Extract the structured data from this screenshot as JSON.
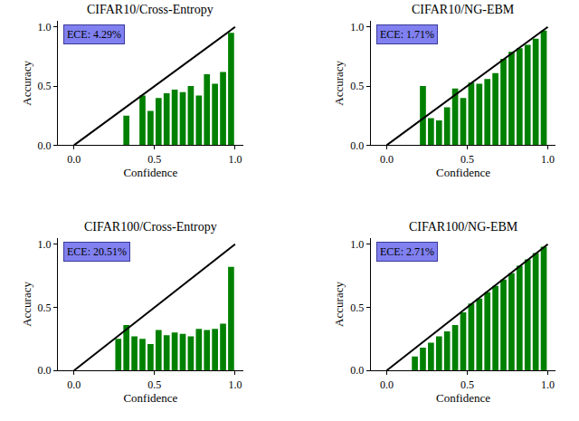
{
  "chart_data": [
    {
      "type": "bar",
      "title": "CIFAR10/Cross-Entropy",
      "xlabel": "Confidence",
      "ylabel": "Accuracy",
      "annotation": "ECE: 4.29%",
      "color": "#008000",
      "x": [
        0.325,
        0.425,
        0.475,
        0.525,
        0.575,
        0.625,
        0.675,
        0.725,
        0.775,
        0.825,
        0.875,
        0.925,
        0.975
      ],
      "values": [
        0.25,
        0.42,
        0.29,
        0.4,
        0.44,
        0.47,
        0.45,
        0.5,
        0.42,
        0.6,
        0.52,
        0.62,
        0.95
      ],
      "diagonal": {
        "x": [
          0,
          1
        ],
        "values": [
          0,
          1
        ]
      },
      "xlim": [
        -0.1,
        1.05
      ],
      "ylim": [
        0,
        1.05
      ],
      "xticks": [
        {
          "value": 0,
          "label": "0.0"
        },
        {
          "value": 0.5,
          "label": "0.5"
        },
        {
          "value": 1,
          "label": "1.0"
        }
      ],
      "yticks": [
        {
          "value": 0,
          "label": "0.0"
        },
        {
          "value": 0.5,
          "label": "0.5"
        },
        {
          "value": 1,
          "label": "1.0"
        }
      ],
      "grid": false
    },
    {
      "type": "bar",
      "title": "CIFAR10/NG-EBM",
      "xlabel": "Confidence",
      "ylabel": "Accuracy",
      "annotation": "ECE: 1.71%",
      "color": "#008000",
      "x": [
        0.225,
        0.275,
        0.325,
        0.375,
        0.425,
        0.475,
        0.525,
        0.575,
        0.625,
        0.675,
        0.725,
        0.775,
        0.825,
        0.875,
        0.925,
        0.975
      ],
      "values": [
        0.5,
        0.23,
        0.21,
        0.32,
        0.48,
        0.4,
        0.53,
        0.52,
        0.56,
        0.61,
        0.73,
        0.79,
        0.82,
        0.85,
        0.9,
        0.97
      ],
      "diagonal": {
        "x": [
          0,
          1
        ],
        "values": [
          0,
          1
        ]
      },
      "xlim": [
        -0.1,
        1.05
      ],
      "ylim": [
        0,
        1.05
      ],
      "xticks": [
        {
          "value": 0,
          "label": "0.0"
        },
        {
          "value": 0.5,
          "label": "0.5"
        },
        {
          "value": 1,
          "label": "1.0"
        }
      ],
      "yticks": [
        {
          "value": 0,
          "label": "0.0"
        },
        {
          "value": 0.5,
          "label": "0.5"
        },
        {
          "value": 1,
          "label": "1.0"
        }
      ],
      "grid": false
    },
    {
      "type": "bar",
      "title": "CIFAR100/Cross-Entropy",
      "xlabel": "Confidence",
      "ylabel": "Accuracy",
      "annotation": "ECE: 20.51%",
      "color": "#008000",
      "x": [
        0.275,
        0.325,
        0.375,
        0.425,
        0.475,
        0.525,
        0.575,
        0.625,
        0.675,
        0.725,
        0.775,
        0.825,
        0.875,
        0.925,
        0.975
      ],
      "values": [
        0.25,
        0.36,
        0.27,
        0.25,
        0.21,
        0.32,
        0.28,
        0.3,
        0.29,
        0.27,
        0.33,
        0.32,
        0.33,
        0.37,
        0.82
      ],
      "diagonal": {
        "x": [
          0,
          1
        ],
        "values": [
          0,
          1
        ]
      },
      "xlim": [
        -0.1,
        1.05
      ],
      "ylim": [
        0,
        1.05
      ],
      "xticks": [
        {
          "value": 0,
          "label": "0.0"
        },
        {
          "value": 0.5,
          "label": "0.5"
        },
        {
          "value": 1,
          "label": "1.0"
        }
      ],
      "yticks": [
        {
          "value": 0,
          "label": "0.0"
        },
        {
          "value": 0.5,
          "label": "0.5"
        },
        {
          "value": 1,
          "label": "1.0"
        }
      ],
      "grid": false
    },
    {
      "type": "bar",
      "title": "CIFAR100/NG-EBM",
      "xlabel": "Confidence",
      "ylabel": "Accuracy",
      "annotation": "ECE: 2.71%",
      "color": "#008000",
      "x": [
        0.175,
        0.225,
        0.275,
        0.325,
        0.375,
        0.425,
        0.475,
        0.525,
        0.575,
        0.625,
        0.675,
        0.725,
        0.775,
        0.825,
        0.875,
        0.925,
        0.975
      ],
      "values": [
        0.11,
        0.18,
        0.22,
        0.27,
        0.31,
        0.36,
        0.46,
        0.53,
        0.57,
        0.62,
        0.67,
        0.72,
        0.77,
        0.83,
        0.88,
        0.93,
        0.98
      ],
      "diagonal": {
        "x": [
          0,
          1
        ],
        "values": [
          0,
          1
        ]
      },
      "xlim": [
        -0.1,
        1.05
      ],
      "ylim": [
        0,
        1.05
      ],
      "xticks": [
        {
          "value": 0,
          "label": "0.0"
        },
        {
          "value": 0.5,
          "label": "0.5"
        },
        {
          "value": 1,
          "label": "1.0"
        }
      ],
      "yticks": [
        {
          "value": 0,
          "label": "0.0"
        },
        {
          "value": 0.5,
          "label": "0.5"
        },
        {
          "value": 1,
          "label": "1.0"
        }
      ],
      "grid": false
    }
  ]
}
